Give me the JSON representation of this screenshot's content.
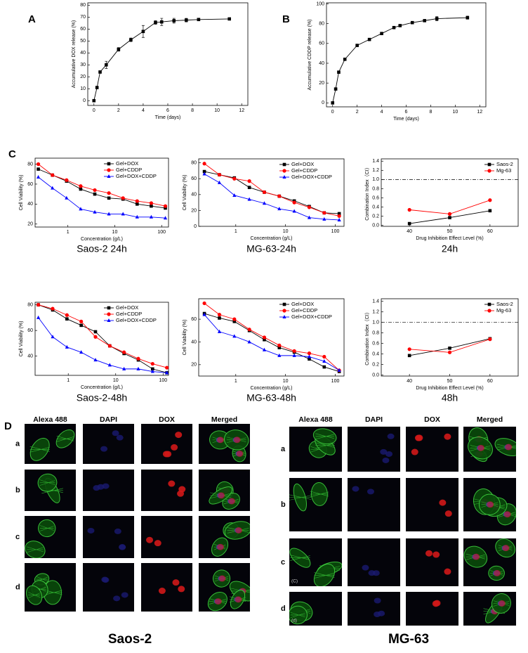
{
  "chart_data": [
    {
      "type": "line",
      "panel_label": "A",
      "ylabel": "Accumulative DOX release (%)",
      "xlabel": "Time (days)",
      "x": [
        0,
        0.25,
        0.5,
        1,
        2,
        3,
        4,
        5,
        5.5,
        6.5,
        7.5,
        8.5,
        11
      ],
      "series": [
        {
          "color": "#000000",
          "marker": "square",
          "values": [
            0,
            11,
            24,
            30,
            43,
            51,
            58,
            65.5,
            66,
            67,
            67.5,
            68,
            68.5
          ],
          "errors": [
            0,
            0.5,
            1,
            3,
            1.5,
            1.5,
            5,
            1.5,
            3,
            2,
            1.5,
            1,
            0.5
          ]
        }
      ],
      "xlim": [
        -0.5,
        12.5
      ],
      "xticks": [
        0,
        2,
        4,
        6,
        8,
        10,
        12
      ],
      "ylim": [
        -4,
        82
      ],
      "yticks": [
        0,
        10,
        20,
        30,
        40,
        50,
        60,
        70,
        80
      ]
    },
    {
      "type": "line",
      "panel_label": "B",
      "ylabel": "Accumulative CDDP release (%)",
      "xlabel": "Time (days)",
      "x": [
        0,
        0.25,
        0.5,
        1,
        2,
        3,
        4,
        5,
        5.5,
        6.5,
        7.5,
        8.5,
        11
      ],
      "series": [
        {
          "color": "#000000",
          "marker": "square",
          "values": [
            0,
            14,
            31,
            44,
            58,
            64,
            70,
            76,
            78,
            81,
            83,
            85,
            86
          ],
          "errors": [
            0,
            0.5,
            1,
            1,
            1,
            1,
            1,
            1,
            1,
            1,
            1,
            2,
            1.5
          ]
        }
      ],
      "xlim": [
        -0.5,
        12.5
      ],
      "xticks": [
        0,
        2,
        4,
        6,
        8,
        10,
        12
      ],
      "ylim": [
        -4,
        101
      ],
      "yticks": [
        0,
        20,
        40,
        60,
        80,
        100
      ]
    },
    {
      "type": "line",
      "panel_label": "C",
      "caption": "Saos-2  24h",
      "ylabel": "Cell Viability (%)",
      "xlabel": "Concentration (g/L)",
      "xscale": "log",
      "legend": "upper right",
      "x": [
        0.234,
        0.469,
        0.938,
        1.875,
        3.75,
        7.5,
        15,
        30,
        60,
        120
      ],
      "series": [
        {
          "name": "Gel+DOX",
          "color": "#000000",
          "marker": "square",
          "values": [
            75,
            69,
            63,
            55,
            50,
            46,
            45,
            40,
            38,
            36
          ]
        },
        {
          "name": "Gel+CDDP",
          "color": "#ff0000",
          "marker": "circle",
          "values": [
            80,
            69,
            64,
            58,
            54,
            51,
            46,
            43,
            41,
            38
          ]
        },
        {
          "name": "Gel+DOX+CDDP",
          "color": "#0000ff",
          "marker": "triangle",
          "values": [
            67,
            56,
            46,
            35,
            32,
            30,
            30,
            27,
            27,
            26
          ]
        }
      ],
      "xlim": [
        0.2,
        140
      ],
      "xticks": [
        1,
        10,
        100
      ],
      "ylim": [
        17,
        86
      ],
      "yticks": [
        20,
        40,
        60,
        80
      ]
    },
    {
      "type": "line",
      "caption": "MG-63-24h",
      "ylabel": "Cell Viability (%)",
      "xlabel": "Concentration (g/L)",
      "xscale": "log",
      "legend": "upper right",
      "x": [
        0.234,
        0.469,
        0.938,
        1.875,
        3.75,
        7.5,
        15,
        30,
        60,
        120
      ],
      "series": [
        {
          "name": "Gel+DOX",
          "color": "#000000",
          "marker": "square",
          "values": [
            69,
            65,
            61,
            49,
            43,
            38,
            32,
            25,
            17,
            16
          ]
        },
        {
          "name": "Gel+CDDP",
          "color": "#ff0000",
          "marker": "circle",
          "values": [
            79,
            65,
            60,
            57,
            43,
            38,
            30,
            24,
            17,
            13
          ]
        },
        {
          "name": "Gel+DOX+CDDP",
          "color": "#0000ff",
          "marker": "triangle",
          "values": [
            66,
            55,
            39,
            34,
            29,
            22,
            19,
            11,
            9,
            8
          ]
        }
      ],
      "xlim": [
        0.18,
        150
      ],
      "xticks": [
        1,
        10,
        100
      ],
      "ylim": [
        0,
        85
      ],
      "yticks": [
        0,
        20,
        40,
        60,
        80
      ]
    },
    {
      "type": "line",
      "caption": "24h",
      "ylabel": "Combination Index（CI）",
      "xlabel": "Drug Inhibition Effect Level (%)",
      "legend": "upper right",
      "reference_line": 1,
      "x": [
        40,
        50,
        60
      ],
      "series": [
        {
          "name": "Saos-2",
          "color": "#000000",
          "marker": "square",
          "values": [
            0.04,
            0.17,
            0.32
          ]
        },
        {
          "name": "Mg-63",
          "color": "#ff0000",
          "marker": "circle",
          "values": [
            0.34,
            0.25,
            0.55
          ]
        }
      ],
      "xlim": [
        33,
        67
      ],
      "xticks": [
        40,
        50,
        60
      ],
      "ylim": [
        -0.02,
        1.45
      ],
      "yticks": [
        {
          "value": 0,
          "label": "0.0"
        },
        0.2,
        0.4,
        0.6,
        0.8,
        {
          "value": 1,
          "label": "1.0"
        },
        1.2,
        1.4
      ]
    },
    {
      "type": "line",
      "caption": "Saos-2-48h",
      "ylabel": "Cell Viability (%)",
      "xlabel": "Concentration (g/L)",
      "xscale": "log",
      "legend": "upper right",
      "x": [
        0.234,
        0.469,
        0.938,
        1.875,
        3.75,
        7.5,
        15,
        30,
        60,
        120
      ],
      "series": [
        {
          "name": "Gel+DOX",
          "color": "#000000",
          "marker": "square",
          "values": [
            80,
            76,
            69,
            64,
            59,
            48,
            42,
            37,
            30,
            27
          ]
        },
        {
          "name": "Gel+CDDP",
          "color": "#ff0000",
          "marker": "circle",
          "values": [
            80,
            77,
            72,
            67,
            55,
            48,
            43,
            38,
            34,
            31
          ]
        },
        {
          "name": "Gel+DOX+CDDP",
          "color": "#0000ff",
          "marker": "triangle",
          "values": [
            70,
            55,
            47,
            43,
            37,
            33,
            30,
            30,
            28,
            27
          ]
        }
      ],
      "xlim": [
        0.2,
        130
      ],
      "xticks": [
        1,
        10,
        100
      ],
      "ylim": [
        25,
        82
      ],
      "yticks": [
        40,
        60,
        80
      ]
    },
    {
      "type": "line",
      "caption": "MG-63-48h",
      "ylabel": "Cell Viability (%)",
      "xlabel": "Concentration (g/L)",
      "xscale": "log",
      "legend": "upper right",
      "x": [
        0.234,
        0.469,
        0.938,
        1.875,
        3.75,
        7.5,
        15,
        30,
        60,
        120
      ],
      "series": [
        {
          "name": "Gel+DOX",
          "color": "#000000",
          "marker": "square",
          "values": [
            65,
            61,
            58,
            50,
            42,
            35,
            31,
            25,
            18,
            14
          ]
        },
        {
          "name": "Gel+CDDP",
          "color": "#ff0000",
          "marker": "circle",
          "values": [
            74,
            64,
            60,
            51,
            44,
            37,
            32,
            30,
            27,
            15
          ]
        },
        {
          "name": "Gel+DOX+CDDP",
          "color": "#0000ff",
          "marker": "triangle",
          "values": [
            64,
            49,
            45,
            40,
            33,
            28,
            28,
            27,
            23,
            15
          ]
        }
      ],
      "xlim": [
        0.18,
        150
      ],
      "xticks": [
        1,
        10,
        100
      ],
      "ylim": [
        10,
        78
      ],
      "yticks": [
        20,
        40,
        60
      ]
    },
    {
      "type": "line",
      "caption": "48h",
      "ylabel": "Combination Index（CI）",
      "xlabel": "Drug Inhibition Effect Level (%)",
      "legend": "upper right",
      "reference_line": 1,
      "x": [
        40,
        50,
        60
      ],
      "series": [
        {
          "name": "Saos-2",
          "color": "#000000",
          "marker": "square",
          "values": [
            0.37,
            0.51,
            0.69
          ]
        },
        {
          "name": "Mg-63",
          "color": "#ff0000",
          "marker": "circle",
          "values": [
            0.49,
            0.43,
            0.68
          ]
        }
      ],
      "xlim": [
        33,
        67
      ],
      "xticks": [
        40,
        50,
        60
      ],
      "ylim": [
        -0.02,
        1.45
      ],
      "yticks": [
        {
          "value": 0,
          "label": "0.0"
        },
        0.2,
        0.4,
        0.6,
        0.8,
        {
          "value": 1,
          "label": "1.0"
        },
        1.2,
        1.4
      ]
    }
  ],
  "panel_d": {
    "label": "D",
    "groups": [
      {
        "caption": "Saos-2",
        "columns": [
          "Alexa 488",
          "DAPI",
          "DOX",
          "Merged"
        ],
        "rows": [
          "a",
          "b",
          "c",
          "d"
        ]
      },
      {
        "caption": "MG-63",
        "columns": [
          "Alexa 488",
          "DAPI",
          "DOX",
          "Merged"
        ],
        "rows": [
          "a",
          "b",
          "c",
          "d"
        ],
        "annotations": [
          "(C)",
          "(d)"
        ]
      }
    ]
  }
}
